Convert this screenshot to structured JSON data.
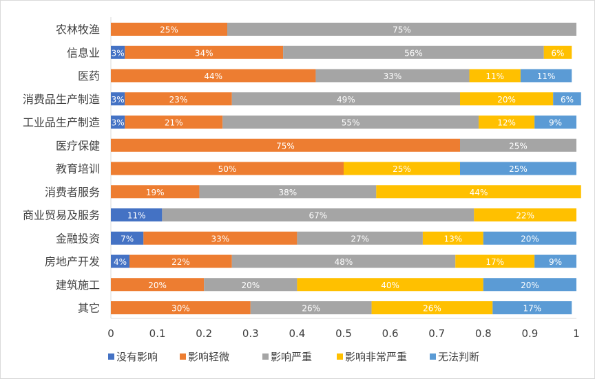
{
  "chart_data": {
    "type": "bar",
    "orientation": "horizontal",
    "stacked": true,
    "title": "",
    "xlabel": "",
    "ylabel": "",
    "xlim": [
      0,
      1
    ],
    "xticks": [
      "0",
      "0.1",
      "0.2",
      "0.3",
      "0.4",
      "0.5",
      "0.6",
      "0.7",
      "0.8",
      "0.9",
      "1"
    ],
    "grid": false,
    "legend_position": "bottom",
    "categories": [
      "农林牧渔",
      "信息业",
      "医药",
      "消费品生产制造",
      "工业品生产制造",
      "医疗保健",
      "教育培训",
      "消费者服务",
      "商业贸易及服务",
      "金融投资",
      "房地产开发",
      "建筑施工",
      "其它"
    ],
    "series": [
      {
        "name": "没有影响",
        "color": "#4472C4",
        "values": [
          0,
          0.03,
          0,
          0.03,
          0.03,
          0,
          0,
          0,
          0.11,
          0.07,
          0.04,
          0,
          0
        ]
      },
      {
        "name": "影响轻微",
        "color": "#ED7D31",
        "values": [
          0.25,
          0.34,
          0.44,
          0.23,
          0.21,
          0.75,
          0.5,
          0.19,
          0,
          0.33,
          0.22,
          0.2,
          0.3
        ]
      },
      {
        "name": "影响严重",
        "color": "#A5A5A5",
        "values": [
          0.75,
          0.56,
          0.33,
          0.49,
          0.55,
          0.25,
          0,
          0.38,
          0.67,
          0.27,
          0.48,
          0.2,
          0.26
        ]
      },
      {
        "name": "影响非常严重",
        "color": "#FFC000",
        "values": [
          0,
          0.06,
          0.11,
          0.2,
          0.12,
          0,
          0.25,
          0.44,
          0.22,
          0.13,
          0.17,
          0.4,
          0.26
        ]
      },
      {
        "name": "无法判断",
        "color": "#5B9BD5",
        "values": [
          0,
          0,
          0.11,
          0.06,
          0.09,
          0,
          0.25,
          0,
          0,
          0.2,
          0.09,
          0.2,
          0.17
        ]
      }
    ],
    "label_format": "percent",
    "label_color": "#ffffff"
  }
}
